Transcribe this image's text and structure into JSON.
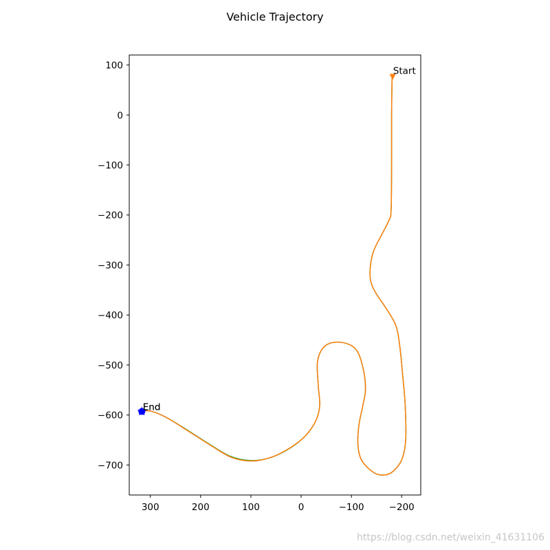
{
  "chart_data": {
    "type": "line",
    "title": "Vehicle Trajectory",
    "xlabel": "",
    "ylabel": "",
    "xlim": [
      342,
      -238
    ],
    "ylim": [
      -760,
      120
    ],
    "x_inverted": true,
    "grid": false,
    "xticks": [
      300,
      200,
      100,
      0,
      -100,
      -200
    ],
    "xtick_labels": [
      "300",
      "200",
      "100",
      "0",
      "−100",
      "−200"
    ],
    "yticks": [
      100,
      0,
      -100,
      -200,
      -300,
      -400,
      -500,
      -600,
      -700
    ],
    "ytick_labels": [
      "100",
      "0",
      "−100",
      "−200",
      "−300",
      "−400",
      "−500",
      "−600",
      "−700"
    ],
    "series": [
      {
        "color": "#2ca02c",
        "marker": "line",
        "points": [
          [
            -181,
            80
          ],
          [
            -180,
            0
          ],
          [
            -180,
            -100
          ],
          [
            -179,
            -190
          ],
          [
            -175,
            -210
          ],
          [
            -160,
            -240
          ],
          [
            -145,
            -270
          ],
          [
            -138,
            -300
          ],
          [
            -138,
            -330
          ],
          [
            -148,
            -355
          ],
          [
            -168,
            -385
          ],
          [
            -188,
            -420
          ],
          [
            -196,
            -460
          ],
          [
            -202,
            -520
          ],
          [
            -207,
            -580
          ],
          [
            -208,
            -650
          ],
          [
            -200,
            -690
          ],
          [
            -180,
            -715
          ],
          [
            -158,
            -720
          ],
          [
            -140,
            -712
          ],
          [
            -120,
            -690
          ],
          [
            -113,
            -660
          ],
          [
            -115,
            -620
          ],
          [
            -123,
            -580
          ],
          [
            -128,
            -550
          ],
          [
            -124,
            -510
          ],
          [
            -110,
            -470
          ],
          [
            -82,
            -455
          ],
          [
            -50,
            -460
          ],
          [
            -33,
            -490
          ],
          [
            -34,
            -540
          ],
          [
            -37,
            -580
          ],
          [
            -30,
            -610
          ],
          [
            -10,
            -640
          ],
          [
            20,
            -665
          ],
          [
            60,
            -685
          ],
          [
            100,
            -691
          ],
          [
            140,
            -683
          ],
          [
            180,
            -660
          ],
          [
            230,
            -628
          ],
          [
            270,
            -604
          ],
          [
            300,
            -592
          ],
          [
            315,
            -593
          ]
        ]
      },
      {
        "color": "#ff7f0e",
        "marker": "line",
        "points": [
          [
            -181,
            80
          ],
          [
            -180,
            0
          ],
          [
            -180,
            -100
          ],
          [
            -179,
            -190
          ],
          [
            -175,
            -210
          ],
          [
            -160,
            -240
          ],
          [
            -145,
            -270
          ],
          [
            -138,
            -300
          ],
          [
            -138,
            -330
          ],
          [
            -148,
            -355
          ],
          [
            -168,
            -385
          ],
          [
            -188,
            -420
          ],
          [
            -196,
            -460
          ],
          [
            -202,
            -520
          ],
          [
            -207,
            -580
          ],
          [
            -208,
            -650
          ],
          [
            -200,
            -690
          ],
          [
            -180,
            -715
          ],
          [
            -158,
            -720
          ],
          [
            -140,
            -712
          ],
          [
            -120,
            -690
          ],
          [
            -113,
            -660
          ],
          [
            -115,
            -620
          ],
          [
            -123,
            -580
          ],
          [
            -128,
            -550
          ],
          [
            -124,
            -510
          ],
          [
            -110,
            -470
          ],
          [
            -82,
            -455
          ],
          [
            -50,
            -460
          ],
          [
            -33,
            -490
          ],
          [
            -34,
            -540
          ],
          [
            -37,
            -580
          ],
          [
            -30,
            -610
          ],
          [
            -10,
            -640
          ],
          [
            18,
            -663
          ],
          [
            58,
            -684
          ],
          [
            98,
            -692
          ],
          [
            138,
            -685
          ],
          [
            178,
            -662
          ],
          [
            228,
            -630
          ],
          [
            268,
            -605
          ],
          [
            300,
            -592
          ],
          [
            315,
            -593
          ]
        ]
      }
    ],
    "markers": [
      {
        "x": -182,
        "y": 76,
        "shape": "triangle-down",
        "color": "#ff7f0e"
      },
      {
        "x": 317,
        "y": -593,
        "shape": "circle",
        "color": "#0000ff"
      },
      {
        "x": 317,
        "y": -593,
        "shape": "star",
        "color": "#0000ff"
      }
    ],
    "annotations": [
      {
        "text": "Start",
        "x": -183,
        "y": 82
      },
      {
        "text": "End",
        "x": 315,
        "y": -590
      },
      {
        "text": "End",
        "x": 315,
        "y": -590
      }
    ],
    "colors": {
      "axes": "#000000",
      "series_1": "#2ca02c",
      "series_2": "#ff7f0e",
      "end_marker": "#0000ff"
    }
  },
  "watermark": "https://blog.csdn.net/weixin_41631106"
}
